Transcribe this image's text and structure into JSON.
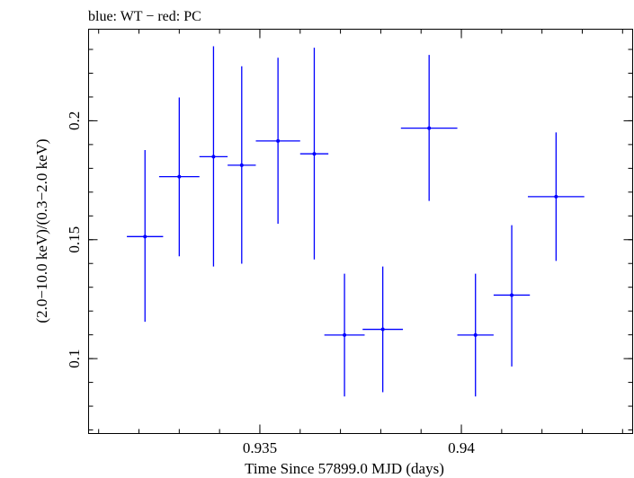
{
  "chart_data": {
    "type": "scatter",
    "title": "blue: WT − red: PC",
    "xlabel": "Time Since 57899.0 MJD (days)",
    "ylabel": "(2.0−10.0 keV)/(0.3−2.0 keV)",
    "xlim": [
      0.93075,
      0.94425
    ],
    "ylim": [
      0.0685,
      0.2385
    ],
    "x_ticks": [
      {
        "value": 0.935,
        "label": "0.935"
      },
      {
        "value": 0.94,
        "label": "0.94"
      }
    ],
    "y_ticks": [
      {
        "value": 0.1,
        "label": "0.1"
      },
      {
        "value": 0.15,
        "label": "0.15"
      },
      {
        "value": 0.2,
        "label": "0.2"
      }
    ],
    "x_minor_step": 0.001,
    "y_minor_step": 0.01,
    "series": [
      {
        "color": "#0000ff",
        "points": [
          {
            "x": 0.93215,
            "xerr": 0.00045,
            "y": 0.1513,
            "ylo": 0.1155,
            "yhi": 0.1877
          },
          {
            "x": 0.933,
            "xerr": 0.0005,
            "y": 0.1765,
            "ylo": 0.143,
            "yhi": 0.2098
          },
          {
            "x": 0.93385,
            "xerr": 0.00035,
            "y": 0.1849,
            "ylo": 0.1387,
            "yhi": 0.2313
          },
          {
            "x": 0.93455,
            "xerr": 0.00035,
            "y": 0.1813,
            "ylo": 0.1399,
            "yhi": 0.2229
          },
          {
            "x": 0.93545,
            "xerr": 0.00055,
            "y": 0.1915,
            "ylo": 0.1567,
            "yhi": 0.2265
          },
          {
            "x": 0.93635,
            "xerr": 0.00035,
            "y": 0.1861,
            "ylo": 0.1417,
            "yhi": 0.2307
          },
          {
            "x": 0.9371,
            "xerr": 0.0005,
            "y": 0.1099,
            "ylo": 0.0841,
            "yhi": 0.1357
          },
          {
            "x": 0.93805,
            "xerr": 0.0005,
            "y": 0.1123,
            "ylo": 0.0859,
            "yhi": 0.1387
          },
          {
            "x": 0.9392,
            "xerr": 0.0007,
            "y": 0.1969,
            "ylo": 0.1663,
            "yhi": 0.2277
          },
          {
            "x": 0.94035,
            "xerr": 0.00045,
            "y": 0.1099,
            "ylo": 0.0841,
            "yhi": 0.1357
          },
          {
            "x": 0.94125,
            "xerr": 0.00045,
            "y": 0.1267,
            "ylo": 0.0967,
            "yhi": 0.1561
          },
          {
            "x": 0.94235,
            "xerr": 0.0007,
            "y": 0.1681,
            "ylo": 0.1411,
            "yhi": 0.1951
          }
        ]
      }
    ]
  }
}
